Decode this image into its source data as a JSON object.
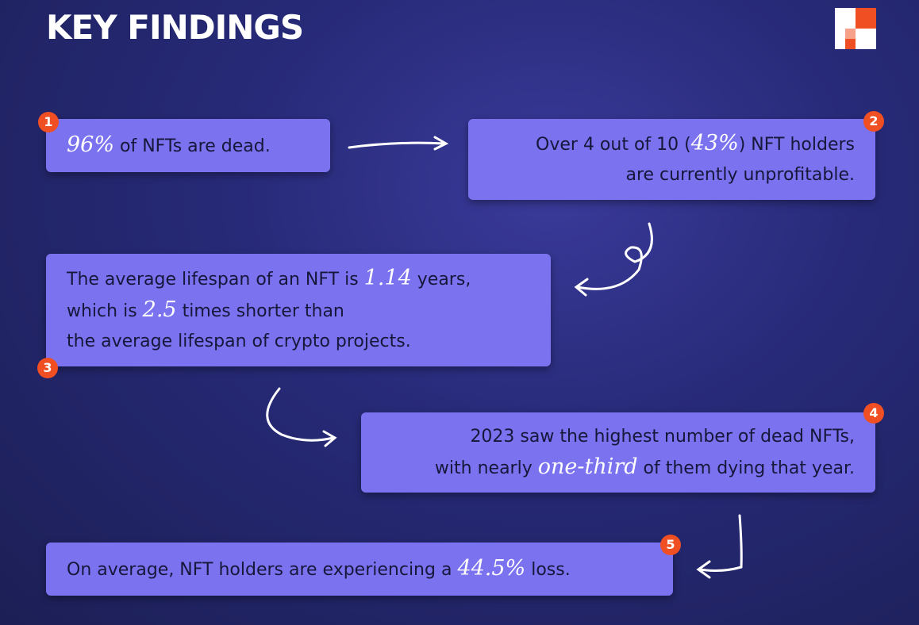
{
  "header": {
    "title": "KEY FINDINGS"
  },
  "findings": [
    {
      "badge": "1",
      "lines": [
        [
          {
            "text": "96%",
            "style": "handwritten"
          },
          {
            "text": " of NFTs are dead."
          }
        ]
      ]
    },
    {
      "badge": "2",
      "lines": [
        [
          {
            "text": "Over 4 out of 10 ("
          },
          {
            "text": "43%",
            "style": "handwritten"
          },
          {
            "text": ") NFT holders"
          }
        ],
        [
          {
            "text": "are currently unprofitable."
          }
        ]
      ]
    },
    {
      "badge": "3",
      "lines": [
        [
          {
            "text": "The average lifespan of an NFT is "
          },
          {
            "text": "1.14",
            "style": "handwritten"
          },
          {
            "text": " years,"
          }
        ],
        [
          {
            "text": "which is "
          },
          {
            "text": "2.5",
            "style": "handwritten"
          },
          {
            "text": " times shorter than"
          }
        ],
        [
          {
            "text": "the average lifespan of crypto projects."
          }
        ]
      ]
    },
    {
      "badge": "4",
      "lines": [
        [
          {
            "text": "2023 saw the highest number of dead NFTs,"
          }
        ],
        [
          {
            "text": "with nearly "
          },
          {
            "text": "one-third",
            "style": "handwritten"
          },
          {
            "text": " of them dying that year."
          }
        ]
      ]
    },
    {
      "badge": "5",
      "lines": [
        [
          {
            "text": "On average, NFT holders are experiencing a "
          },
          {
            "text": "44.5%",
            "style": "handwritten"
          },
          {
            "text": " loss."
          }
        ]
      ]
    }
  ]
}
